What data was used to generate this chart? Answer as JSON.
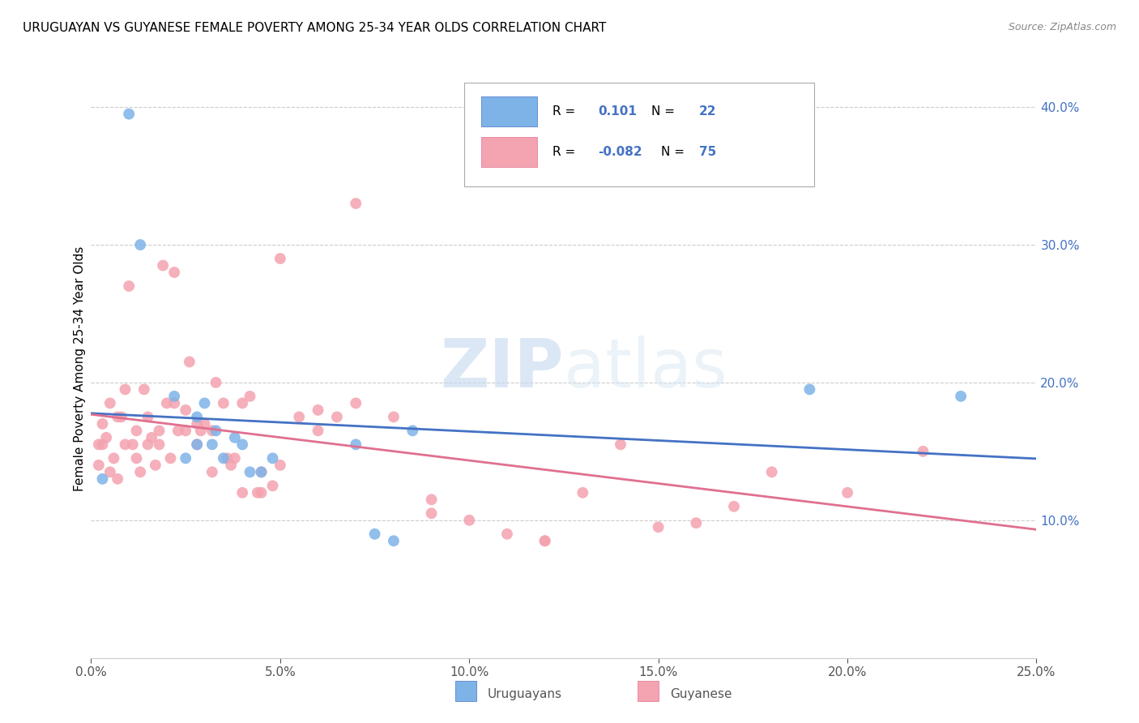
{
  "title": "URUGUAYAN VS GUYANESE FEMALE POVERTY AMONG 25-34 YEAR OLDS CORRELATION CHART",
  "source": "Source: ZipAtlas.com",
  "ylabel": "Female Poverty Among 25-34 Year Olds",
  "xlabel_uruguayan": "Uruguayans",
  "xlabel_guyanese": "Guyanese",
  "xmin": 0.0,
  "xmax": 0.25,
  "ymin": 0.0,
  "ymax": 0.42,
  "uruguayan_color": "#7EB3E8",
  "guyanese_color": "#F4A3B0",
  "uruguayan_line_color": "#4472C4",
  "guyanese_line_color": "#E07090",
  "legend_R_uruguayan": "0.101",
  "legend_N_uruguayan": "22",
  "legend_R_guyanese": "-0.082",
  "legend_N_guyanese": "75",
  "watermark_zip": "ZIP",
  "watermark_atlas": "atlas",
  "uruguayan_x": [
    0.003,
    0.01,
    0.013,
    0.022,
    0.025,
    0.028,
    0.028,
    0.03,
    0.032,
    0.033,
    0.035,
    0.038,
    0.04,
    0.042,
    0.045,
    0.048,
    0.07,
    0.075,
    0.08,
    0.085,
    0.19,
    0.23
  ],
  "uruguayan_y": [
    0.13,
    0.395,
    0.3,
    0.19,
    0.145,
    0.175,
    0.155,
    0.185,
    0.155,
    0.165,
    0.145,
    0.16,
    0.155,
    0.135,
    0.135,
    0.145,
    0.155,
    0.09,
    0.085,
    0.165,
    0.195,
    0.19
  ],
  "guyanese_x": [
    0.002,
    0.003,
    0.004,
    0.005,
    0.006,
    0.007,
    0.008,
    0.009,
    0.01,
    0.011,
    0.012,
    0.013,
    0.014,
    0.015,
    0.016,
    0.017,
    0.018,
    0.019,
    0.02,
    0.021,
    0.022,
    0.023,
    0.025,
    0.026,
    0.028,
    0.029,
    0.03,
    0.032,
    0.033,
    0.035,
    0.037,
    0.038,
    0.04,
    0.042,
    0.044,
    0.045,
    0.048,
    0.05,
    0.055,
    0.06,
    0.065,
    0.07,
    0.08,
    0.09,
    0.1,
    0.11,
    0.12,
    0.13,
    0.14,
    0.15,
    0.16,
    0.17,
    0.18,
    0.2,
    0.22,
    0.002,
    0.003,
    0.005,
    0.007,
    0.009,
    0.012,
    0.015,
    0.018,
    0.022,
    0.025,
    0.028,
    0.032,
    0.036,
    0.04,
    0.045,
    0.05,
    0.06,
    0.07,
    0.09,
    0.12
  ],
  "guyanese_y": [
    0.155,
    0.17,
    0.16,
    0.185,
    0.145,
    0.13,
    0.175,
    0.195,
    0.27,
    0.155,
    0.145,
    0.135,
    0.195,
    0.175,
    0.16,
    0.14,
    0.155,
    0.285,
    0.185,
    0.145,
    0.28,
    0.165,
    0.18,
    0.215,
    0.155,
    0.165,
    0.17,
    0.135,
    0.2,
    0.185,
    0.14,
    0.145,
    0.185,
    0.19,
    0.12,
    0.12,
    0.125,
    0.29,
    0.175,
    0.18,
    0.175,
    0.185,
    0.175,
    0.115,
    0.1,
    0.09,
    0.085,
    0.12,
    0.155,
    0.095,
    0.098,
    0.11,
    0.135,
    0.12,
    0.15,
    0.14,
    0.155,
    0.135,
    0.175,
    0.155,
    0.165,
    0.155,
    0.165,
    0.185,
    0.165,
    0.17,
    0.165,
    0.145,
    0.12,
    0.135,
    0.14,
    0.165,
    0.33,
    0.105,
    0.085
  ]
}
